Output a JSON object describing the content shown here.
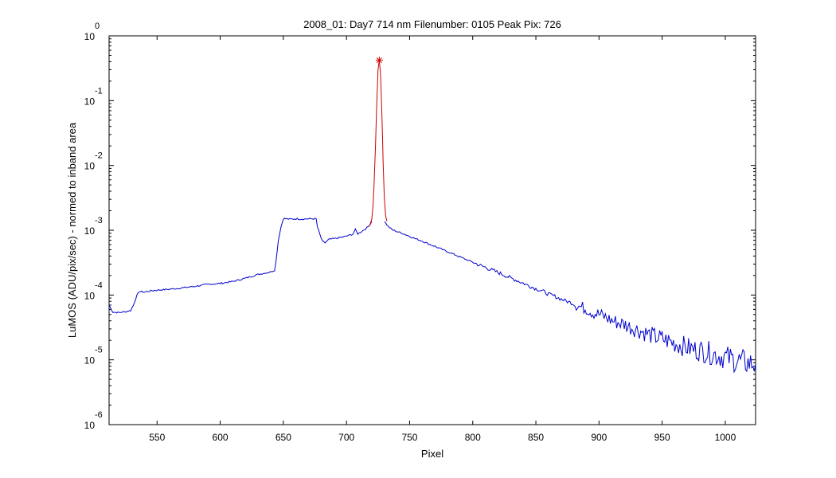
{
  "chart_data": {
    "type": "line",
    "title": "2008_01: Day7  714 nm  Filenumber: 0105 Peak Pix: 726",
    "xlabel": "Pixel",
    "ylabel": "LuMOS (ADU/pix/sec) - normed to inband area",
    "xlim": [
      512,
      1024
    ],
    "ylim": [
      1e-06,
      1
    ],
    "yscale": "log",
    "x_ticks": [
      550,
      600,
      650,
      700,
      750,
      800,
      850,
      900,
      950,
      1000
    ],
    "y_ticks": [
      {
        "value": 1,
        "base": "10",
        "exp": "0"
      },
      {
        "value": 0.1,
        "base": "10",
        "exp": "-1"
      },
      {
        "value": 0.01,
        "base": "10",
        "exp": "-2"
      },
      {
        "value": 0.001,
        "base": "10",
        "exp": "-3"
      },
      {
        "value": 0.0001,
        "base": "10",
        "exp": "-4"
      },
      {
        "value": 1e-05,
        "base": "10",
        "exp": "-5"
      },
      {
        "value": 1e-06,
        "base": "10",
        "exp": "-6"
      }
    ],
    "grid": false,
    "series": [
      {
        "color": "#0000cc",
        "points": [
          [
            512,
            7e-05
          ],
          [
            515,
            5.45e-05
          ],
          [
            520,
            5.35e-05
          ],
          [
            525,
            5.55e-05
          ],
          [
            529,
            5.75e-05
          ],
          [
            531,
            6.8e-05
          ],
          [
            534,
            9.8e-05
          ],
          [
            536,
            0.000114
          ],
          [
            540,
            0.000111
          ],
          [
            545,
            0.000116
          ],
          [
            550,
            0.000119
          ],
          [
            560,
            0.000123
          ],
          [
            570,
            0.000129
          ],
          [
            580,
            0.000136
          ],
          [
            590,
            0.000146
          ],
          [
            600,
            0.000151
          ],
          [
            610,
            0.000162
          ],
          [
            620,
            0.000182
          ],
          [
            630,
            0.000208
          ],
          [
            640,
            0.000228
          ],
          [
            643,
            0.000242
          ],
          [
            644,
            0.000305
          ],
          [
            646,
            0.00069
          ],
          [
            648,
            0.0011
          ],
          [
            650,
            0.00152
          ],
          [
            655,
            0.00148
          ],
          [
            660,
            0.0015
          ],
          [
            665,
            0.00149
          ],
          [
            670,
            0.0015
          ],
          [
            676,
            0.0015
          ],
          [
            677,
            0.00112
          ],
          [
            679,
            0.00085
          ],
          [
            681,
            0.00067
          ],
          [
            683,
            0.00064
          ],
          [
            686,
            0.00072
          ],
          [
            690,
            0.00074
          ],
          [
            695,
            0.00077
          ],
          [
            700,
            0.00081
          ],
          [
            705,
            0.00087
          ],
          [
            707,
            0.00102
          ],
          [
            709,
            0.00088
          ],
          [
            712,
            0.00096
          ],
          [
            716,
            0.00108
          ],
          [
            719,
            0.00125
          ],
          [
            720,
            0.00137
          ]
        ]
      },
      {
        "color": "#0000cc",
        "points": [
          [
            730,
            0.00137
          ],
          [
            733,
            0.00115
          ],
          [
            736,
            0.00102
          ],
          [
            740,
            0.000955
          ],
          [
            745,
            0.000885
          ],
          [
            750,
            0.000805
          ],
          [
            755,
            0.000735
          ],
          [
            760,
            0.00068
          ],
          [
            765,
            0.000615
          ],
          [
            770,
            0.000565
          ],
          [
            775,
            0.000512
          ],
          [
            780,
            0.000467
          ],
          [
            785,
            0.000425
          ],
          [
            790,
            0.000387
          ],
          [
            795,
            0.000352
          ],
          [
            800,
            0.000322
          ],
          [
            805,
            0.00029
          ],
          [
            810,
            0.000268
          ],
          [
            815,
            0.000243
          ],
          [
            820,
            0.000223
          ],
          [
            825,
            0.000203
          ],
          [
            830,
            0.000183
          ],
          [
            835,
            0.000168
          ],
          [
            840,
            0.000152
          ],
          [
            845,
            0.000138
          ],
          [
            850,
            0.000125
          ],
          [
            855,
            0.000116
          ],
          [
            860,
            0.000103
          ],
          [
            865,
            9.55e-05
          ],
          [
            870,
            8.65e-05
          ],
          [
            875,
            7.95e-05
          ],
          [
            880,
            7.35e-05
          ],
          [
            885,
            6.6e-05
          ],
          [
            890,
            6.15e-05
          ],
          [
            895,
            5.35e-05
          ],
          [
            900,
            5.05e-05
          ],
          [
            905,
            4.55e-05
          ],
          [
            910,
            4.05e-05
          ],
          [
            915,
            3.75e-05
          ],
          [
            920,
            3.55e-05
          ],
          [
            925,
            3.2e-05
          ],
          [
            930,
            2.95e-05
          ],
          [
            935,
            2.68e-05
          ],
          [
            940,
            2.45e-05
          ],
          [
            945,
            2.25e-05
          ],
          [
            950,
            2.1e-05
          ],
          [
            955,
            1.95e-05
          ],
          [
            960,
            1.8e-05
          ],
          [
            965,
            1.68e-05
          ],
          [
            970,
            1.55e-05
          ],
          [
            975,
            1.45e-05
          ],
          [
            980,
            1.4e-05
          ],
          [
            985,
            1.32e-05
          ],
          [
            990,
            1.24e-05
          ],
          [
            995,
            1.16e-05
          ],
          [
            1000,
            1.1e-05
          ],
          [
            1005,
            1.03e-05
          ],
          [
            1010,
            9.7e-06
          ],
          [
            1015,
            9.2e-06
          ],
          [
            1020,
            8.8e-06
          ],
          [
            1024,
            8.6e-06
          ]
        ]
      },
      {
        "color": "#cc0000",
        "points": [
          [
            718,
            0.00115
          ],
          [
            719,
            0.00128
          ],
          [
            720,
            0.00148
          ],
          [
            721,
            0.00235
          ],
          [
            722,
            0.0058
          ],
          [
            723,
            0.02
          ],
          [
            724,
            0.09
          ],
          [
            725,
            0.3
          ],
          [
            726,
            0.42
          ],
          [
            727,
            0.25
          ],
          [
            728,
            0.065
          ],
          [
            729,
            0.012
          ],
          [
            730,
            0.0032
          ],
          [
            731,
            0.0017
          ],
          [
            732,
            0.00137
          ]
        ]
      }
    ],
    "peak_marker": {
      "x": 726,
      "y": 0.42,
      "color": "#cc0000",
      "symbol": "*"
    }
  }
}
